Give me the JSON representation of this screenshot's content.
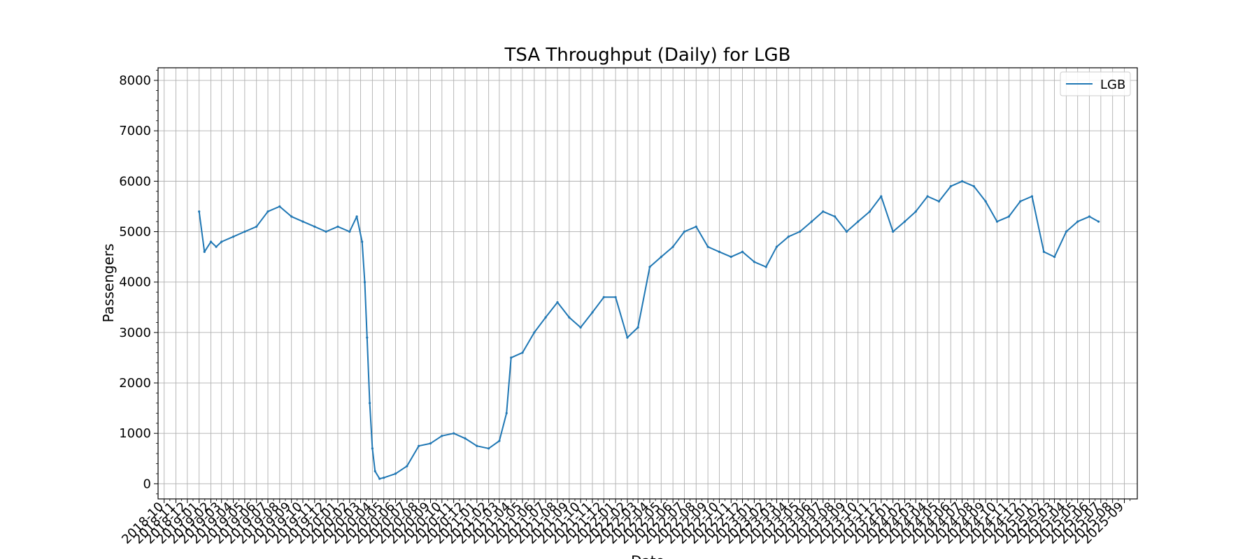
{
  "chart_data": {
    "type": "line",
    "title": "TSA Throughput (Daily) for LGB",
    "xlabel": "Date",
    "ylabel": "Passengers",
    "grid": true,
    "legend_position": "top-right",
    "x_range": [
      "2018-09-15",
      "2025-10-05"
    ],
    "ylim": [
      -300,
      8250
    ],
    "y_ticks": [
      0,
      1000,
      2000,
      3000,
      4000,
      5000,
      6000,
      7000,
      8000
    ],
    "x_tick_labels": [
      "2018-10",
      "2018-11",
      "2018-12",
      "2019-01",
      "2019-02",
      "2019-03",
      "2019-04",
      "2019-05",
      "2019-06",
      "2019-07",
      "2019-08",
      "2019-09",
      "2019-10",
      "2019-11",
      "2019-12",
      "2020-01",
      "2020-02",
      "2020-03",
      "2020-04",
      "2020-05",
      "2020-06",
      "2020-07",
      "2020-08",
      "2020-09",
      "2020-10",
      "2020-11",
      "2020-12",
      "2021-01",
      "2021-02",
      "2021-03",
      "2021-04",
      "2021-05",
      "2021-06",
      "2021-07",
      "2021-08",
      "2021-09",
      "2021-10",
      "2021-11",
      "2021-12",
      "2022-01",
      "2022-02",
      "2022-03",
      "2022-04",
      "2022-05",
      "2022-06",
      "2022-07",
      "2022-08",
      "2022-09",
      "2022-10",
      "2022-11",
      "2022-12",
      "2023-01",
      "2023-02",
      "2023-03",
      "2023-04",
      "2023-05",
      "2023-06",
      "2023-07",
      "2023-08",
      "2023-09",
      "2023-10",
      "2023-11",
      "2023-12",
      "2024-01",
      "2024-02",
      "2024-03",
      "2024-04",
      "2024-05",
      "2024-06",
      "2024-07",
      "2024-08",
      "2024-09",
      "2024-10",
      "2024-11",
      "2024-12",
      "2025-01",
      "2025-02",
      "2025-03",
      "2025-04",
      "2025-05",
      "2025-06",
      "2025-07",
      "2025-08",
      "2025-09"
    ],
    "series": [
      {
        "name": "LGB",
        "color": "#1f77b4",
        "points": [
          [
            "2019-01-01",
            5400
          ],
          [
            "2019-01-15",
            4600
          ],
          [
            "2019-02-01",
            4800
          ],
          [
            "2019-02-15",
            4700
          ],
          [
            "2019-03-01",
            4800
          ],
          [
            "2019-04-01",
            4900
          ],
          [
            "2019-05-01",
            5000
          ],
          [
            "2019-06-01",
            5100
          ],
          [
            "2019-07-01",
            5400
          ],
          [
            "2019-08-01",
            5500
          ],
          [
            "2019-09-01",
            5300
          ],
          [
            "2019-10-01",
            5200
          ],
          [
            "2019-11-01",
            5100
          ],
          [
            "2019-12-01",
            5000
          ],
          [
            "2020-01-01",
            5100
          ],
          [
            "2020-02-01",
            5000
          ],
          [
            "2020-02-20",
            5300
          ],
          [
            "2020-03-05",
            4800
          ],
          [
            "2020-03-12",
            4000
          ],
          [
            "2020-03-18",
            2900
          ],
          [
            "2020-03-25",
            1600
          ],
          [
            "2020-04-01",
            700
          ],
          [
            "2020-04-08",
            250
          ],
          [
            "2020-04-20",
            100
          ],
          [
            "2020-05-01",
            120
          ],
          [
            "2020-06-01",
            200
          ],
          [
            "2020-07-01",
            350
          ],
          [
            "2020-08-01",
            750
          ],
          [
            "2020-09-01",
            800
          ],
          [
            "2020-10-01",
            950
          ],
          [
            "2020-11-01",
            1000
          ],
          [
            "2020-12-01",
            900
          ],
          [
            "2021-01-01",
            750
          ],
          [
            "2021-02-01",
            700
          ],
          [
            "2021-03-01",
            850
          ],
          [
            "2021-03-20",
            1400
          ],
          [
            "2021-04-01",
            2500
          ],
          [
            "2021-05-01",
            2600
          ],
          [
            "2021-06-01",
            3000
          ],
          [
            "2021-07-01",
            3300
          ],
          [
            "2021-08-01",
            3600
          ],
          [
            "2021-09-01",
            3300
          ],
          [
            "2021-10-01",
            3100
          ],
          [
            "2021-11-01",
            3400
          ],
          [
            "2021-12-01",
            3700
          ],
          [
            "2022-01-01",
            3700
          ],
          [
            "2022-02-01",
            2900
          ],
          [
            "2022-03-01",
            3100
          ],
          [
            "2022-04-01",
            4300
          ],
          [
            "2022-05-01",
            4500
          ],
          [
            "2022-06-01",
            4700
          ],
          [
            "2022-07-01",
            5000
          ],
          [
            "2022-08-01",
            5100
          ],
          [
            "2022-09-01",
            4700
          ],
          [
            "2022-10-01",
            4600
          ],
          [
            "2022-11-01",
            4500
          ],
          [
            "2022-12-01",
            4600
          ],
          [
            "2023-01-01",
            4400
          ],
          [
            "2023-02-01",
            4300
          ],
          [
            "2023-03-01",
            4700
          ],
          [
            "2023-04-01",
            4900
          ],
          [
            "2023-05-01",
            5000
          ],
          [
            "2023-06-01",
            5200
          ],
          [
            "2023-07-01",
            5400
          ],
          [
            "2023-08-01",
            5300
          ],
          [
            "2023-09-01",
            5000
          ],
          [
            "2023-10-01",
            5200
          ],
          [
            "2023-11-01",
            5400
          ],
          [
            "2023-12-01",
            5700
          ],
          [
            "2024-01-01",
            5000
          ],
          [
            "2024-02-01",
            5200
          ],
          [
            "2024-03-01",
            5400
          ],
          [
            "2024-04-01",
            5700
          ],
          [
            "2024-05-01",
            5600
          ],
          [
            "2024-06-01",
            5900
          ],
          [
            "2024-07-01",
            6000
          ],
          [
            "2024-08-01",
            5900
          ],
          [
            "2024-09-01",
            5600
          ],
          [
            "2024-10-01",
            5200
          ],
          [
            "2024-11-01",
            5300
          ],
          [
            "2024-12-01",
            5600
          ],
          [
            "2025-01-01",
            5700
          ],
          [
            "2025-02-01",
            4600
          ],
          [
            "2025-03-01",
            4500
          ],
          [
            "2025-04-01",
            5000
          ],
          [
            "2025-05-01",
            5200
          ],
          [
            "2025-06-01",
            5300
          ],
          [
            "2025-06-25",
            5200
          ]
        ]
      }
    ]
  }
}
